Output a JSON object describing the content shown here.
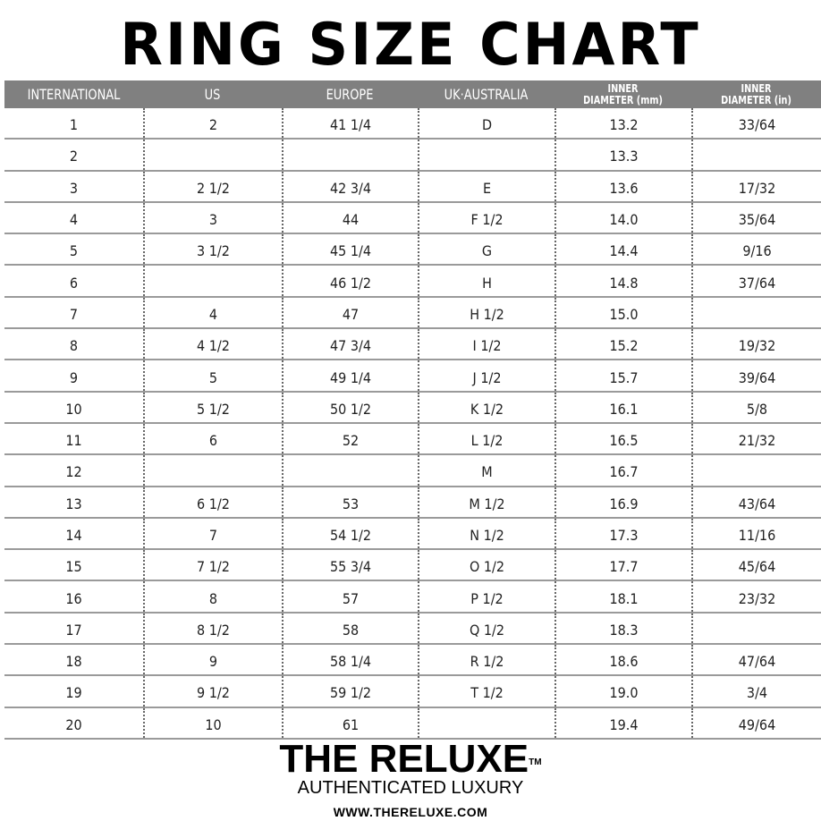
{
  "title": "RING SIZE CHART",
  "table": {
    "headers": [
      {
        "line1": "INTERNATIONAL"
      },
      {
        "line1": "US"
      },
      {
        "line1": "EUROPE"
      },
      {
        "line1": "UK·AUSTRALIA"
      },
      {
        "line1": "INNER",
        "line2": "DIAMETER (mm)"
      },
      {
        "line1": "INNER",
        "line2": "DIAMETER (in)"
      }
    ],
    "rows": [
      [
        "1",
        "2",
        "41 1/4",
        "D",
        "13.2",
        "33/64"
      ],
      [
        "2",
        "",
        "",
        "",
        "13.3",
        ""
      ],
      [
        "3",
        "2 1/2",
        "42 3/4",
        "E",
        "13.6",
        "17/32"
      ],
      [
        "4",
        "3",
        "44",
        "F 1/2",
        "14.0",
        "35/64"
      ],
      [
        "5",
        "3 1/2",
        "45 1/4",
        "G",
        "14.4",
        "9/16"
      ],
      [
        "6",
        "",
        "46 1/2",
        "H",
        "14.8",
        "37/64"
      ],
      [
        "7",
        "4",
        "47",
        "H 1/2",
        "15.0",
        ""
      ],
      [
        "8",
        "4 1/2",
        "47 3/4",
        "I 1/2",
        "15.2",
        "19/32"
      ],
      [
        "9",
        "5",
        "49 1/4",
        "J 1/2",
        "15.7",
        "39/64"
      ],
      [
        "10",
        "5 1/2",
        "50 1/2",
        "K 1/2",
        "16.1",
        "5/8"
      ],
      [
        "11",
        "6",
        "52",
        "L 1/2",
        "16.5",
        "21/32"
      ],
      [
        "12",
        "",
        "",
        "M",
        "16.7",
        ""
      ],
      [
        "13",
        "6 1/2",
        "53",
        "M 1/2",
        "16.9",
        "43/64"
      ],
      [
        "14",
        "7",
        "54 1/2",
        "N 1/2",
        "17.3",
        "11/16"
      ],
      [
        "15",
        "7 1/2",
        "55 3/4",
        "O 1/2",
        "17.7",
        "45/64"
      ],
      [
        "16",
        "8",
        "57",
        "P 1/2",
        "18.1",
        "23/32"
      ],
      [
        "17",
        "8 1/2",
        "58",
        "Q 1/2",
        "18.3",
        ""
      ],
      [
        "18",
        "9",
        "58 1/4",
        "R 1/2",
        "18.6",
        "47/64"
      ],
      [
        "19",
        "9 1/2",
        "59 1/2",
        "T 1/2",
        "19.0",
        "3/4"
      ],
      [
        "20",
        "10",
        "61",
        "",
        "19.4",
        "49/64"
      ]
    ]
  },
  "brand": {
    "logo": "THE RELUXE",
    "trademark": "TM",
    "tagline": "AUTHENTICATED LUXURY",
    "url": "WWW.THERELUXE.COM"
  },
  "colors": {
    "header_bg": "#808080",
    "header_text": "#ffffff"
  }
}
